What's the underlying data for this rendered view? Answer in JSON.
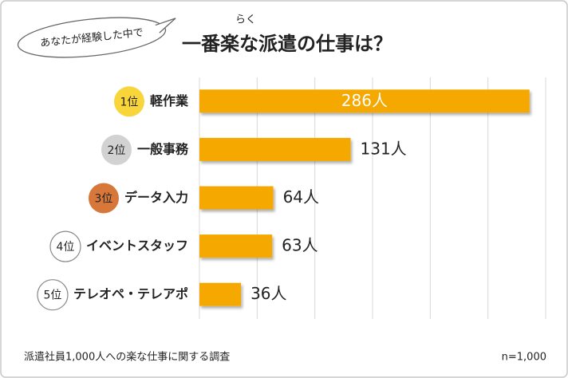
{
  "chart_data": {
    "type": "bar",
    "orientation": "horizontal",
    "bubble_text": "あなたが経験した中で",
    "title": "一番楽な派遣の仕事は？",
    "title_ruby": "らく",
    "ranks": [
      "1位",
      "2位",
      "3位",
      "4位",
      "5位"
    ],
    "rank_colors": [
      "#f8d53a",
      "#d2d2d2",
      "#d8773a",
      "#ffffff",
      "#ffffff"
    ],
    "categories": [
      "軽作業",
      "一般事務",
      "データ入力",
      "イベントスタッフ",
      "テレオペ・テレアポ"
    ],
    "values": [
      286,
      131,
      64,
      63,
      36
    ],
    "value_labels": [
      "286人",
      "131人",
      "64人",
      "63人",
      "36人"
    ],
    "color": "#f4a800",
    "xlim": [
      0,
      300
    ],
    "xticks": [
      0,
      50,
      100,
      150,
      200,
      250,
      300
    ],
    "grid": true,
    "footnote": "派遣社員1,000人への楽な仕事に関する調査",
    "sample_size": "n=1,000"
  }
}
